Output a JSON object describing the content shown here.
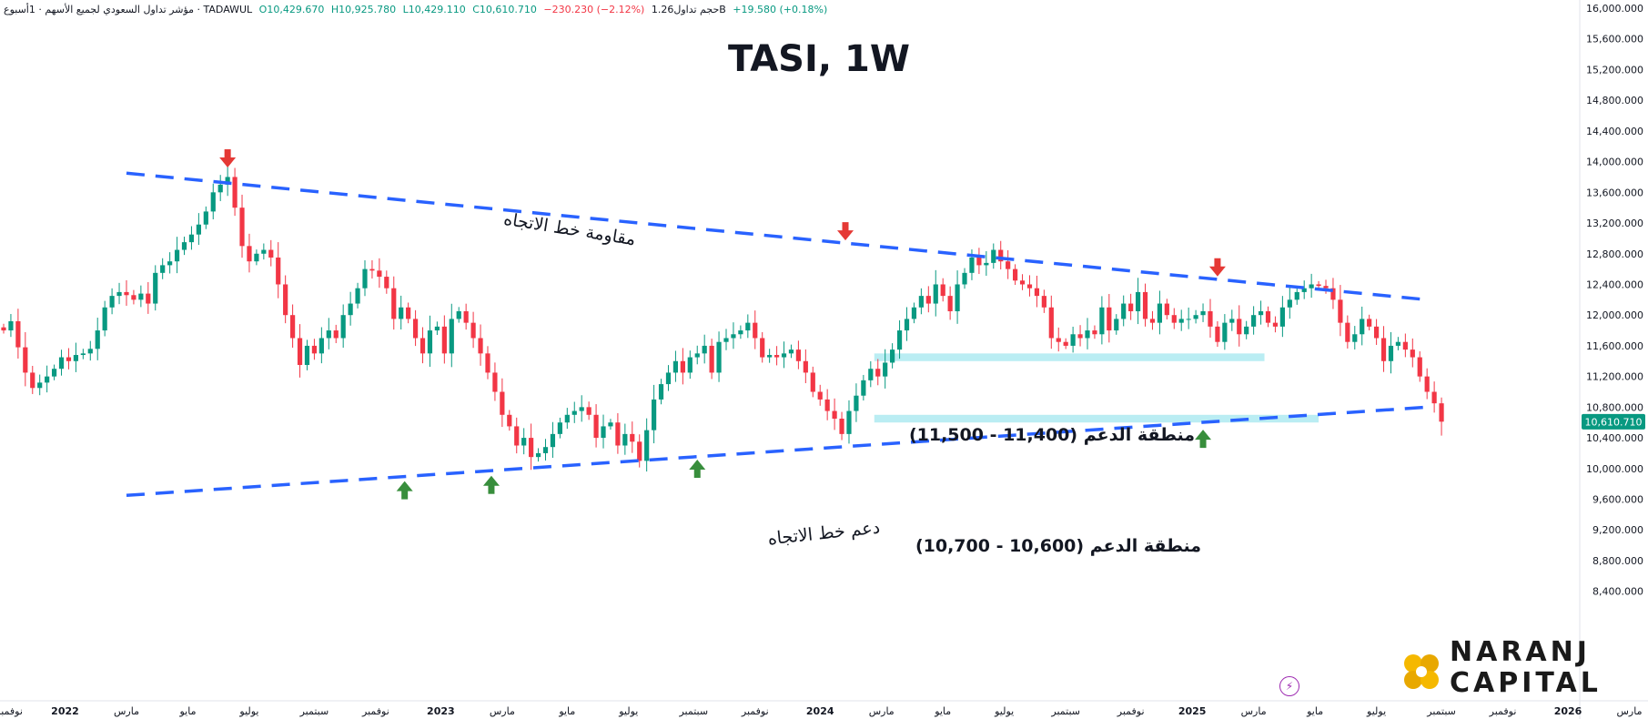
{
  "header": {
    "symbol_name": "مؤشر تداول السعودي لجميع الأسهم · 1أسبوع · TADAWUL",
    "open": "O10,429.670",
    "high": "H10,925.780",
    "low": "L10,429.110",
    "close": "C10,610.710",
    "change": "−230.230 (−2.12%)",
    "volume": "حجم تداول1.26B",
    "volume_change": "+19.580 (+0.18%)"
  },
  "title": "TASI, 1W",
  "annotations": {
    "resistance_trend": "مقاومة خط الاتجاه",
    "support_trend": "دعم خط الاتجاه",
    "support_zone_1": "منطقة الدعم (11,400 - 11,500)",
    "support_zone_2": "منطقة الدعم (10,600 - 10,700)"
  },
  "logo": {
    "line1": "NARANJ",
    "line2": "CAPITAL",
    "icon": "naranj-flower-icon"
  },
  "flash_icon": "lightning-icon",
  "colors": {
    "up": "#089981",
    "down": "#f23645",
    "trendline": "#2962ff",
    "zone": "#b2ebf2",
    "arrow_down": "#e53935",
    "arrow_up": "#388e3c",
    "price_tag": "#089981"
  },
  "chart_data": {
    "type": "candlestick",
    "title": "TASI, 1W",
    "timeframe": "1W",
    "ylim": [
      8200,
      16000
    ],
    "y_ticks": [
      8400,
      8800,
      9200,
      9600,
      10000,
      10400,
      10800,
      11200,
      11600,
      12000,
      12400,
      12800,
      13200,
      13600,
      14000,
      14400,
      14800,
      15200,
      15600,
      16000
    ],
    "y_tick_labels": [
      "8,400.000",
      "8,800.000",
      "9,200.000",
      "9,600.000",
      "10,000.000",
      "10,400.000",
      "10,800.000",
      "11,200.000",
      "11,600.000",
      "12,000.000",
      "12,400.000",
      "12,800.000",
      "13,200.000",
      "13,600.000",
      "14,000.000",
      "14,400.000",
      "14,800.000",
      "15,200.000",
      "15,600.000",
      "16,000.000"
    ],
    "x_ticks": [
      {
        "label": "نوفمبر",
        "week": 0
      },
      {
        "label": "2022",
        "week": 8.5,
        "bold": true
      },
      {
        "label": "مارس",
        "week": 17
      },
      {
        "label": "مايو",
        "week": 25.5
      },
      {
        "label": "يوليو",
        "week": 34
      },
      {
        "label": "سبتمبر",
        "week": 43
      },
      {
        "label": "نوفمبر",
        "week": 51.5
      },
      {
        "label": "2023",
        "week": 60.5,
        "bold": true
      },
      {
        "label": "مارس",
        "week": 69
      },
      {
        "label": "مايو",
        "week": 78
      },
      {
        "label": "يوليو",
        "week": 86.5
      },
      {
        "label": "سبتمبر",
        "week": 95.5
      },
      {
        "label": "نوفمبر",
        "week": 104
      },
      {
        "label": "2024",
        "week": 113,
        "bold": true
      },
      {
        "label": "مارس",
        "week": 121.5
      },
      {
        "label": "مايو",
        "week": 130
      },
      {
        "label": "يوليو",
        "week": 138.5
      },
      {
        "label": "سبتمبر",
        "week": 147
      },
      {
        "label": "نوفمبر",
        "week": 156
      },
      {
        "label": "2025",
        "week": 164.5,
        "bold": true
      },
      {
        "label": "مارس",
        "week": 173
      },
      {
        "label": "مايو",
        "week": 181.5
      },
      {
        "label": "يوليو",
        "week": 190
      },
      {
        "label": "سبتمبر",
        "week": 199
      },
      {
        "label": "نوفمبر",
        "week": 207.5
      },
      {
        "label": "2026",
        "week": 216.5,
        "bold": true
      },
      {
        "label": "مارس",
        "week": 225
      }
    ],
    "last_price": 10610.71,
    "last_price_label": "10,610.710",
    "closes": [
      11800,
      11920,
      11580,
      11250,
      11050,
      11120,
      11200,
      11300,
      11450,
      11400,
      11480,
      11500,
      11560,
      11800,
      12100,
      12250,
      12300,
      12260,
      12200,
      12280,
      12150,
      12550,
      12650,
      12700,
      12850,
      12950,
      13050,
      13180,
      13350,
      13600,
      13700,
      13800,
      13400,
      12900,
      12700,
      12800,
      12850,
      12750,
      12400,
      12000,
      11700,
      11350,
      11600,
      11500,
      11700,
      11800,
      11700,
      12000,
      12150,
      12350,
      12600,
      12580,
      12500,
      12350,
      11950,
      12100,
      11950,
      11700,
      11500,
      11800,
      11850,
      11500,
      11950,
      12050,
      11900,
      11700,
      11500,
      11250,
      11000,
      10700,
      10550,
      10300,
      10400,
      10150,
      10200,
      10280,
      10450,
      10600,
      10700,
      10750,
      10800,
      10700,
      10400,
      10550,
      10600,
      10300,
      10450,
      10350,
      10100,
      10500,
      10900,
      11100,
      11250,
      11400,
      11250,
      11450,
      11500,
      11600,
      11250,
      11650,
      11700,
      11750,
      11800,
      11900,
      11700,
      11450,
      11480,
      11450,
      11500,
      11550,
      11400,
      11250,
      11000,
      10900,
      10750,
      10650,
      10450,
      10750,
      10950,
      11150,
      11300,
      11200,
      11380,
      11550,
      11800,
      11950,
      12100,
      12250,
      12150,
      12400,
      12250,
      12050,
      12400,
      12550,
      12750,
      12650,
      12680,
      12850,
      12700,
      12600,
      12450,
      12400,
      12350,
      12250,
      12100,
      11700,
      11650,
      11600,
      11750,
      11700,
      11800,
      11750,
      12100,
      11800,
      11950,
      12150,
      12050,
      12300,
      11950,
      11900,
      12150,
      12000,
      11900,
      11950,
      11950,
      12000,
      12050,
      11850,
      11650,
      11900,
      11950,
      11750,
      11850,
      12000,
      12050,
      11900,
      11850,
      12100,
      12200,
      12300,
      12350,
      12400,
      12380,
      12350,
      12200,
      11900,
      11650,
      11750,
      11950,
      11850,
      11700,
      11400,
      11600,
      11650,
      11550,
      11450,
      11200,
      11000,
      10850,
      10610.71
    ],
    "trendlines": [
      {
        "name": "resistance",
        "points": [
          [
            17,
            13850
          ],
          [
            197,
            12200
          ]
        ],
        "style": "dashed"
      },
      {
        "name": "support",
        "points": [
          [
            17,
            9650
          ],
          [
            197,
            10800
          ]
        ],
        "style": "dashed"
      }
    ],
    "zones": [
      {
        "name": "support_zone_1",
        "from_week": 120.5,
        "to_week": 174.5,
        "low": 11400,
        "high": 11500
      },
      {
        "name": "support_zone_2",
        "from_week": 120.5,
        "to_week": 182,
        "low": 10600,
        "high": 10700
      }
    ],
    "arrows_down": [
      {
        "week": 31,
        "price": 13900
      },
      {
        "week": 116.5,
        "price": 12950
      },
      {
        "week": 168,
        "price": 12480
      }
    ],
    "arrows_up": [
      {
        "week": 55.5,
        "price": 9860
      },
      {
        "week": 67.5,
        "price": 9930
      },
      {
        "week": 96,
        "price": 10140
      },
      {
        "week": 166,
        "price": 10530
      }
    ]
  }
}
